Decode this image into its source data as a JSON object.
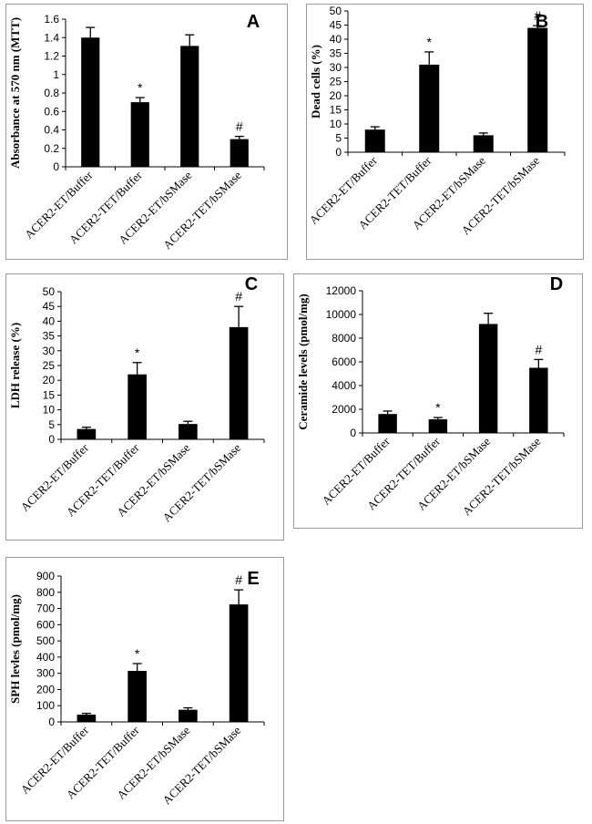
{
  "figure_colors": {
    "bar": "#000000",
    "axis": "#000000",
    "border": "#999999"
  },
  "chart_data": [
    {
      "type": "bar",
      "panel": "A",
      "title": "",
      "xlabel": "",
      "ylabel": "Absorbance at 570 nm (MTT)",
      "ylim": [
        0,
        1.6
      ],
      "yticks": [
        "0",
        "0.2",
        "0.4",
        "0.6",
        "0.8",
        "1",
        "1.2",
        "1.4",
        "1.6"
      ],
      "categories": [
        "ACER2-ET/Buffer",
        "ACER2-TET/Buffer",
        "ACER2-ET/bSMase",
        "ACER2-TET/bSMase"
      ],
      "values": [
        1.4,
        0.7,
        1.31,
        0.3
      ],
      "errors": [
        0.11,
        0.05,
        0.12,
        0.03
      ],
      "annotations": [
        "",
        "*",
        "",
        "#"
      ]
    },
    {
      "type": "bar",
      "panel": "B",
      "title": "",
      "xlabel": "",
      "ylabel": "Dead cells (%)",
      "ylim": [
        0,
        50
      ],
      "yticks": [
        "0",
        "5",
        "10",
        "15",
        "20",
        "25",
        "30",
        "35",
        "40",
        "45",
        "50"
      ],
      "categories": [
        "ACER2-ET/Buffer",
        "ACER2-TET/Buffer",
        "ACER2-ET/bSMase",
        "ACER2-TET/bSMase"
      ],
      "values": [
        8,
        31,
        6,
        44
      ],
      "errors": [
        1,
        4.5,
        0.8,
        0.8
      ],
      "annotations": [
        "",
        "*",
        "",
        "#"
      ]
    },
    {
      "type": "bar",
      "panel": "C",
      "title": "",
      "xlabel": "",
      "ylabel": "LDH release (%)",
      "ylim": [
        0,
        50
      ],
      "yticks": [
        "0",
        "5",
        "10",
        "15",
        "20",
        "25",
        "30",
        "35",
        "40",
        "45",
        "50"
      ],
      "categories": [
        "ACER2-ET/Buffer",
        "ACER2-TET/Buffer",
        "ACER2-ET/bSMase",
        "ACER2-TET/bSMase"
      ],
      "values": [
        3.5,
        22,
        5.2,
        38
      ],
      "errors": [
        0.6,
        4,
        0.9,
        7
      ],
      "annotations": [
        "",
        "*",
        "",
        "#"
      ]
    },
    {
      "type": "bar",
      "panel": "D",
      "title": "",
      "xlabel": "",
      "ylabel": "Ceramide levels (pmol/mg)",
      "ylim": [
        0,
        12000
      ],
      "yticks": [
        "0",
        "2000",
        "4000",
        "6000",
        "8000",
        "10000",
        "12000"
      ],
      "categories": [
        "ACER2-ET/Buffer",
        "ACER2-TET/Buffer",
        "ACER2-ET/bSMase",
        "ACER2-TET/bSMase"
      ],
      "values": [
        1600,
        1150,
        9200,
        5500
      ],
      "errors": [
        250,
        150,
        900,
        700
      ],
      "annotations": [
        "",
        "*",
        "",
        "#"
      ]
    },
    {
      "type": "bar",
      "panel": "E",
      "title": "",
      "xlabel": "",
      "ylabel": "SPH levles (pmol/mg)",
      "ylim": [
        0,
        900
      ],
      "yticks": [
        "0",
        "100",
        "200",
        "300",
        "400",
        "500",
        "600",
        "700",
        "800",
        "900"
      ],
      "categories": [
        "ACER2-ET/Buffer",
        "ACER2-TET/Buffer",
        "ACER2-ET/bSMase",
        "ACER2-TET/bSMase"
      ],
      "values": [
        45,
        315,
        75,
        725
      ],
      "errors": [
        8,
        45,
        12,
        90
      ],
      "annotations": [
        "",
        "*",
        "",
        "#"
      ]
    }
  ]
}
